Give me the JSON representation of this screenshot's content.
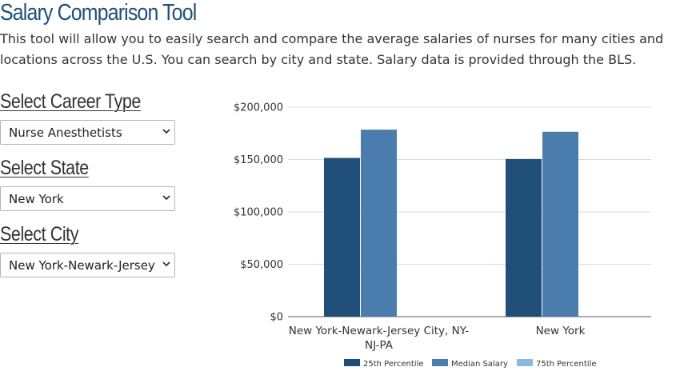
{
  "page": {
    "title": "Salary Comparison Tool",
    "intro": "This tool will allow you to easily search and compare the average salaries of nurses for many cities and locations across the U.S. You can search by city and state. Salary data is provided through the BLS."
  },
  "form": {
    "career": {
      "label": "Select Career Type",
      "value": "Nurse Anesthetists"
    },
    "state": {
      "label": "Select State",
      "value": "New York"
    },
    "city": {
      "label": "Select City",
      "value": "New York-Newark-Jersey City, NY-NJ-PA"
    }
  },
  "colors": {
    "title": "#1f4e79",
    "percentile25": "#1f4e79",
    "median": "#4a7cad",
    "percentile75": "#8fb8df"
  },
  "icons": {
    "select_arrow": "chevron-down-icon"
  },
  "chart_data": {
    "type": "bar",
    "categories": [
      "New York-Newark-Jersey City, NY-NJ-PA",
      "New York"
    ],
    "category_lines": [
      [
        "New York-Newark-Jersey City, NY-",
        "NJ-PA"
      ],
      [
        "New York"
      ]
    ],
    "series": [
      {
        "name": "25th Percentile",
        "color": "#1f4e79",
        "values": [
          151500,
          150500
        ]
      },
      {
        "name": "Median Salary",
        "color": "#4a7cad",
        "values": [
          178500,
          176500
        ]
      },
      {
        "name": "75th Percentile",
        "color": "#8fb8df",
        "values": [
          null,
          null
        ]
      }
    ],
    "yticks": [
      "$0",
      "$50,000",
      "$100,000",
      "$150,000",
      "$200,000"
    ],
    "ytick_values": [
      0,
      50000,
      100000,
      150000,
      200000
    ],
    "ylim": [
      0,
      200000
    ],
    "grid": true,
    "legend": "bottom"
  }
}
